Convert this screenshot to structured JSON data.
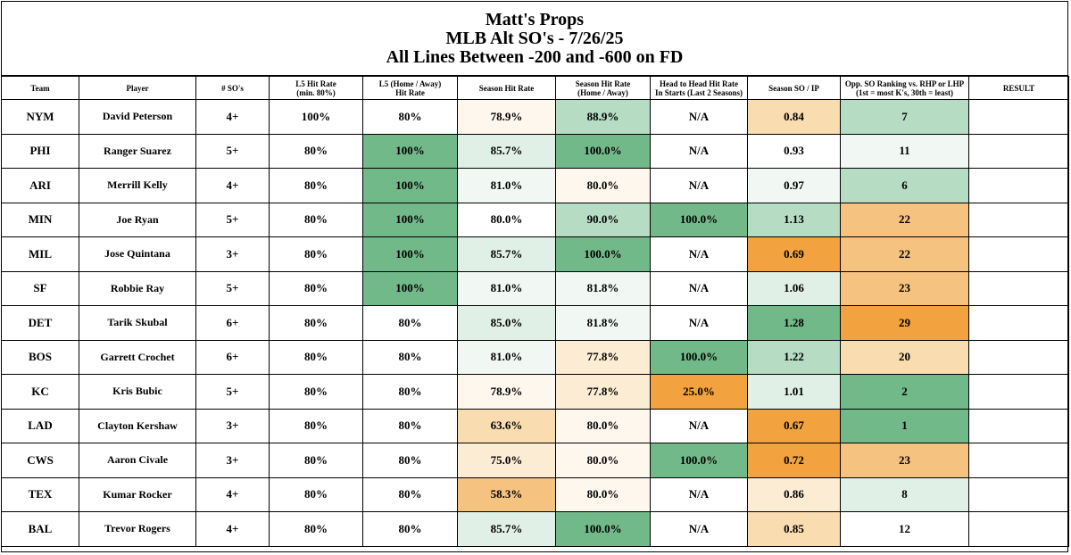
{
  "title": {
    "line1": "Matt's Props",
    "line2": "MLB Alt SO's - 7/26/25",
    "line3": "All Lines Between -200 and -600 on FD"
  },
  "headers": {
    "team": "Team",
    "player": "Player",
    "sos": "# SO's",
    "l5_line1": "L5 Hit Rate",
    "l5_line2": "(min. 80%)",
    "l5ha_line1": "L5 (Home / Away)",
    "l5ha_line2": "Hit Rate",
    "season": "Season Hit Rate",
    "seasonha_line1": "Season Hit Rate",
    "seasonha_line2": "(Home / Away)",
    "h2h_line1": "Head to Head Hit Rate",
    "h2h_line2": "In Starts (Last 2 Seasons)",
    "soip": "Season SO / IP",
    "opp_line1": "Opp. SO Ranking vs. RHP or LHP",
    "opp_line2": "(1st = most K's, 30th = least)",
    "result": "RESULT"
  },
  "colors": {
    "green_strong": "#72b98a",
    "green_medium": "#b6dcc3",
    "green_light": "#e1f0e6",
    "green_faint": "#f1f8f3",
    "orange_strong": "#f2a23f",
    "orange_medium": "#f6c27f",
    "orange_light": "#f9dcaf",
    "orange_faint": "#fcecd3",
    "cream": "#fdf7ee",
    "white": "#ffffff"
  },
  "rows": [
    {
      "team": "NYM",
      "player": "David Peterson",
      "sos": "4+",
      "l5": "100%",
      "l5ha": "80%",
      "season": "78.9%",
      "seasonha": "88.9%",
      "h2h": "N/A",
      "soip": "0.84",
      "opp": "7",
      "result": "",
      "c_l5ha": "white",
      "c_season": "cream",
      "c_seasonha": "green_medium",
      "c_h2h": "white",
      "c_soip": "orange_light",
      "c_opp": "green_medium"
    },
    {
      "team": "PHI",
      "player": "Ranger Suarez",
      "sos": "5+",
      "l5": "80%",
      "l5ha": "100%",
      "season": "85.7%",
      "seasonha": "100.0%",
      "h2h": "N/A",
      "soip": "0.93",
      "opp": "11",
      "result": "",
      "c_l5ha": "green_strong",
      "c_season": "green_light",
      "c_seasonha": "green_strong",
      "c_h2h": "white",
      "c_soip": "white",
      "c_opp": "green_faint"
    },
    {
      "team": "ARI",
      "player": "Merrill Kelly",
      "sos": "4+",
      "l5": "80%",
      "l5ha": "100%",
      "season": "81.0%",
      "seasonha": "80.0%",
      "h2h": "N/A",
      "soip": "0.97",
      "opp": "6",
      "result": "",
      "c_l5ha": "green_strong",
      "c_season": "green_faint",
      "c_seasonha": "cream",
      "c_h2h": "white",
      "c_soip": "green_faint",
      "c_opp": "green_medium"
    },
    {
      "team": "MIN",
      "player": "Joe Ryan",
      "sos": "5+",
      "l5": "80%",
      "l5ha": "100%",
      "season": "80.0%",
      "seasonha": "90.0%",
      "h2h": "100.0%",
      "soip": "1.13",
      "opp": "22",
      "result": "",
      "c_l5ha": "green_strong",
      "c_season": "white",
      "c_seasonha": "green_medium",
      "c_h2h": "green_strong",
      "c_soip": "green_medium",
      "c_opp": "orange_medium"
    },
    {
      "team": "MIL",
      "player": "Jose Quintana",
      "sos": "3+",
      "l5": "80%",
      "l5ha": "100%",
      "season": "85.7%",
      "seasonha": "100.0%",
      "h2h": "N/A",
      "soip": "0.69",
      "opp": "22",
      "result": "",
      "c_l5ha": "green_strong",
      "c_season": "green_light",
      "c_seasonha": "green_strong",
      "c_h2h": "white",
      "c_soip": "orange_strong",
      "c_opp": "orange_medium"
    },
    {
      "team": "SF",
      "player": "Robbie Ray",
      "sos": "5+",
      "l5": "80%",
      "l5ha": "100%",
      "season": "81.0%",
      "seasonha": "81.8%",
      "h2h": "N/A",
      "soip": "1.06",
      "opp": "23",
      "result": "",
      "c_l5ha": "green_strong",
      "c_season": "green_faint",
      "c_seasonha": "green_faint",
      "c_h2h": "white",
      "c_soip": "green_light",
      "c_opp": "orange_medium"
    },
    {
      "team": "DET",
      "player": "Tarik Skubal",
      "sos": "6+",
      "l5": "80%",
      "l5ha": "80%",
      "season": "85.0%",
      "seasonha": "81.8%",
      "h2h": "N/A",
      "soip": "1.28",
      "opp": "29",
      "result": "",
      "c_l5ha": "white",
      "c_season": "green_light",
      "c_seasonha": "green_faint",
      "c_h2h": "white",
      "c_soip": "green_strong",
      "c_opp": "orange_strong"
    },
    {
      "team": "BOS",
      "player": "Garrett Crochet",
      "sos": "6+",
      "l5": "80%",
      "l5ha": "80%",
      "season": "81.0%",
      "seasonha": "77.8%",
      "h2h": "100.0%",
      "soip": "1.22",
      "opp": "20",
      "result": "",
      "c_l5ha": "white",
      "c_season": "green_faint",
      "c_seasonha": "orange_faint",
      "c_h2h": "green_strong",
      "c_soip": "green_medium",
      "c_opp": "orange_light"
    },
    {
      "team": "KC",
      "player": "Kris Bubic",
      "sos": "5+",
      "l5": "80%",
      "l5ha": "80%",
      "season": "78.9%",
      "seasonha": "77.8%",
      "h2h": "25.0%",
      "soip": "1.01",
      "opp": "2",
      "result": "",
      "c_l5ha": "white",
      "c_season": "cream",
      "c_seasonha": "orange_faint",
      "c_h2h": "orange_strong",
      "c_soip": "green_light",
      "c_opp": "green_strong"
    },
    {
      "team": "LAD",
      "player": "Clayton Kershaw",
      "sos": "3+",
      "l5": "80%",
      "l5ha": "80%",
      "season": "63.6%",
      "seasonha": "80.0%",
      "h2h": "N/A",
      "soip": "0.67",
      "opp": "1",
      "result": "",
      "c_l5ha": "white",
      "c_season": "orange_light",
      "c_seasonha": "cream",
      "c_h2h": "white",
      "c_soip": "orange_strong",
      "c_opp": "green_strong"
    },
    {
      "team": "CWS",
      "player": "Aaron Civale",
      "sos": "3+",
      "l5": "80%",
      "l5ha": "80%",
      "season": "75.0%",
      "seasonha": "80.0%",
      "h2h": "100.0%",
      "soip": "0.72",
      "opp": "23",
      "result": "",
      "c_l5ha": "white",
      "c_season": "orange_faint",
      "c_seasonha": "cream",
      "c_h2h": "green_strong",
      "c_soip": "orange_strong",
      "c_opp": "orange_medium"
    },
    {
      "team": "TEX",
      "player": "Kumar Rocker",
      "sos": "4+",
      "l5": "80%",
      "l5ha": "80%",
      "season": "58.3%",
      "seasonha": "80.0%",
      "h2h": "N/A",
      "soip": "0.86",
      "opp": "8",
      "result": "",
      "c_l5ha": "white",
      "c_season": "orange_medium",
      "c_seasonha": "cream",
      "c_h2h": "white",
      "c_soip": "orange_faint",
      "c_opp": "green_light"
    },
    {
      "team": "BAL",
      "player": "Trevor Rogers",
      "sos": "4+",
      "l5": "80%",
      "l5ha": "80%",
      "season": "85.7%",
      "seasonha": "100.0%",
      "h2h": "N/A",
      "soip": "0.85",
      "opp": "12",
      "result": "",
      "c_l5ha": "white",
      "c_season": "green_light",
      "c_seasonha": "green_strong",
      "c_h2h": "white",
      "c_soip": "orange_light",
      "c_opp": "white"
    }
  ]
}
